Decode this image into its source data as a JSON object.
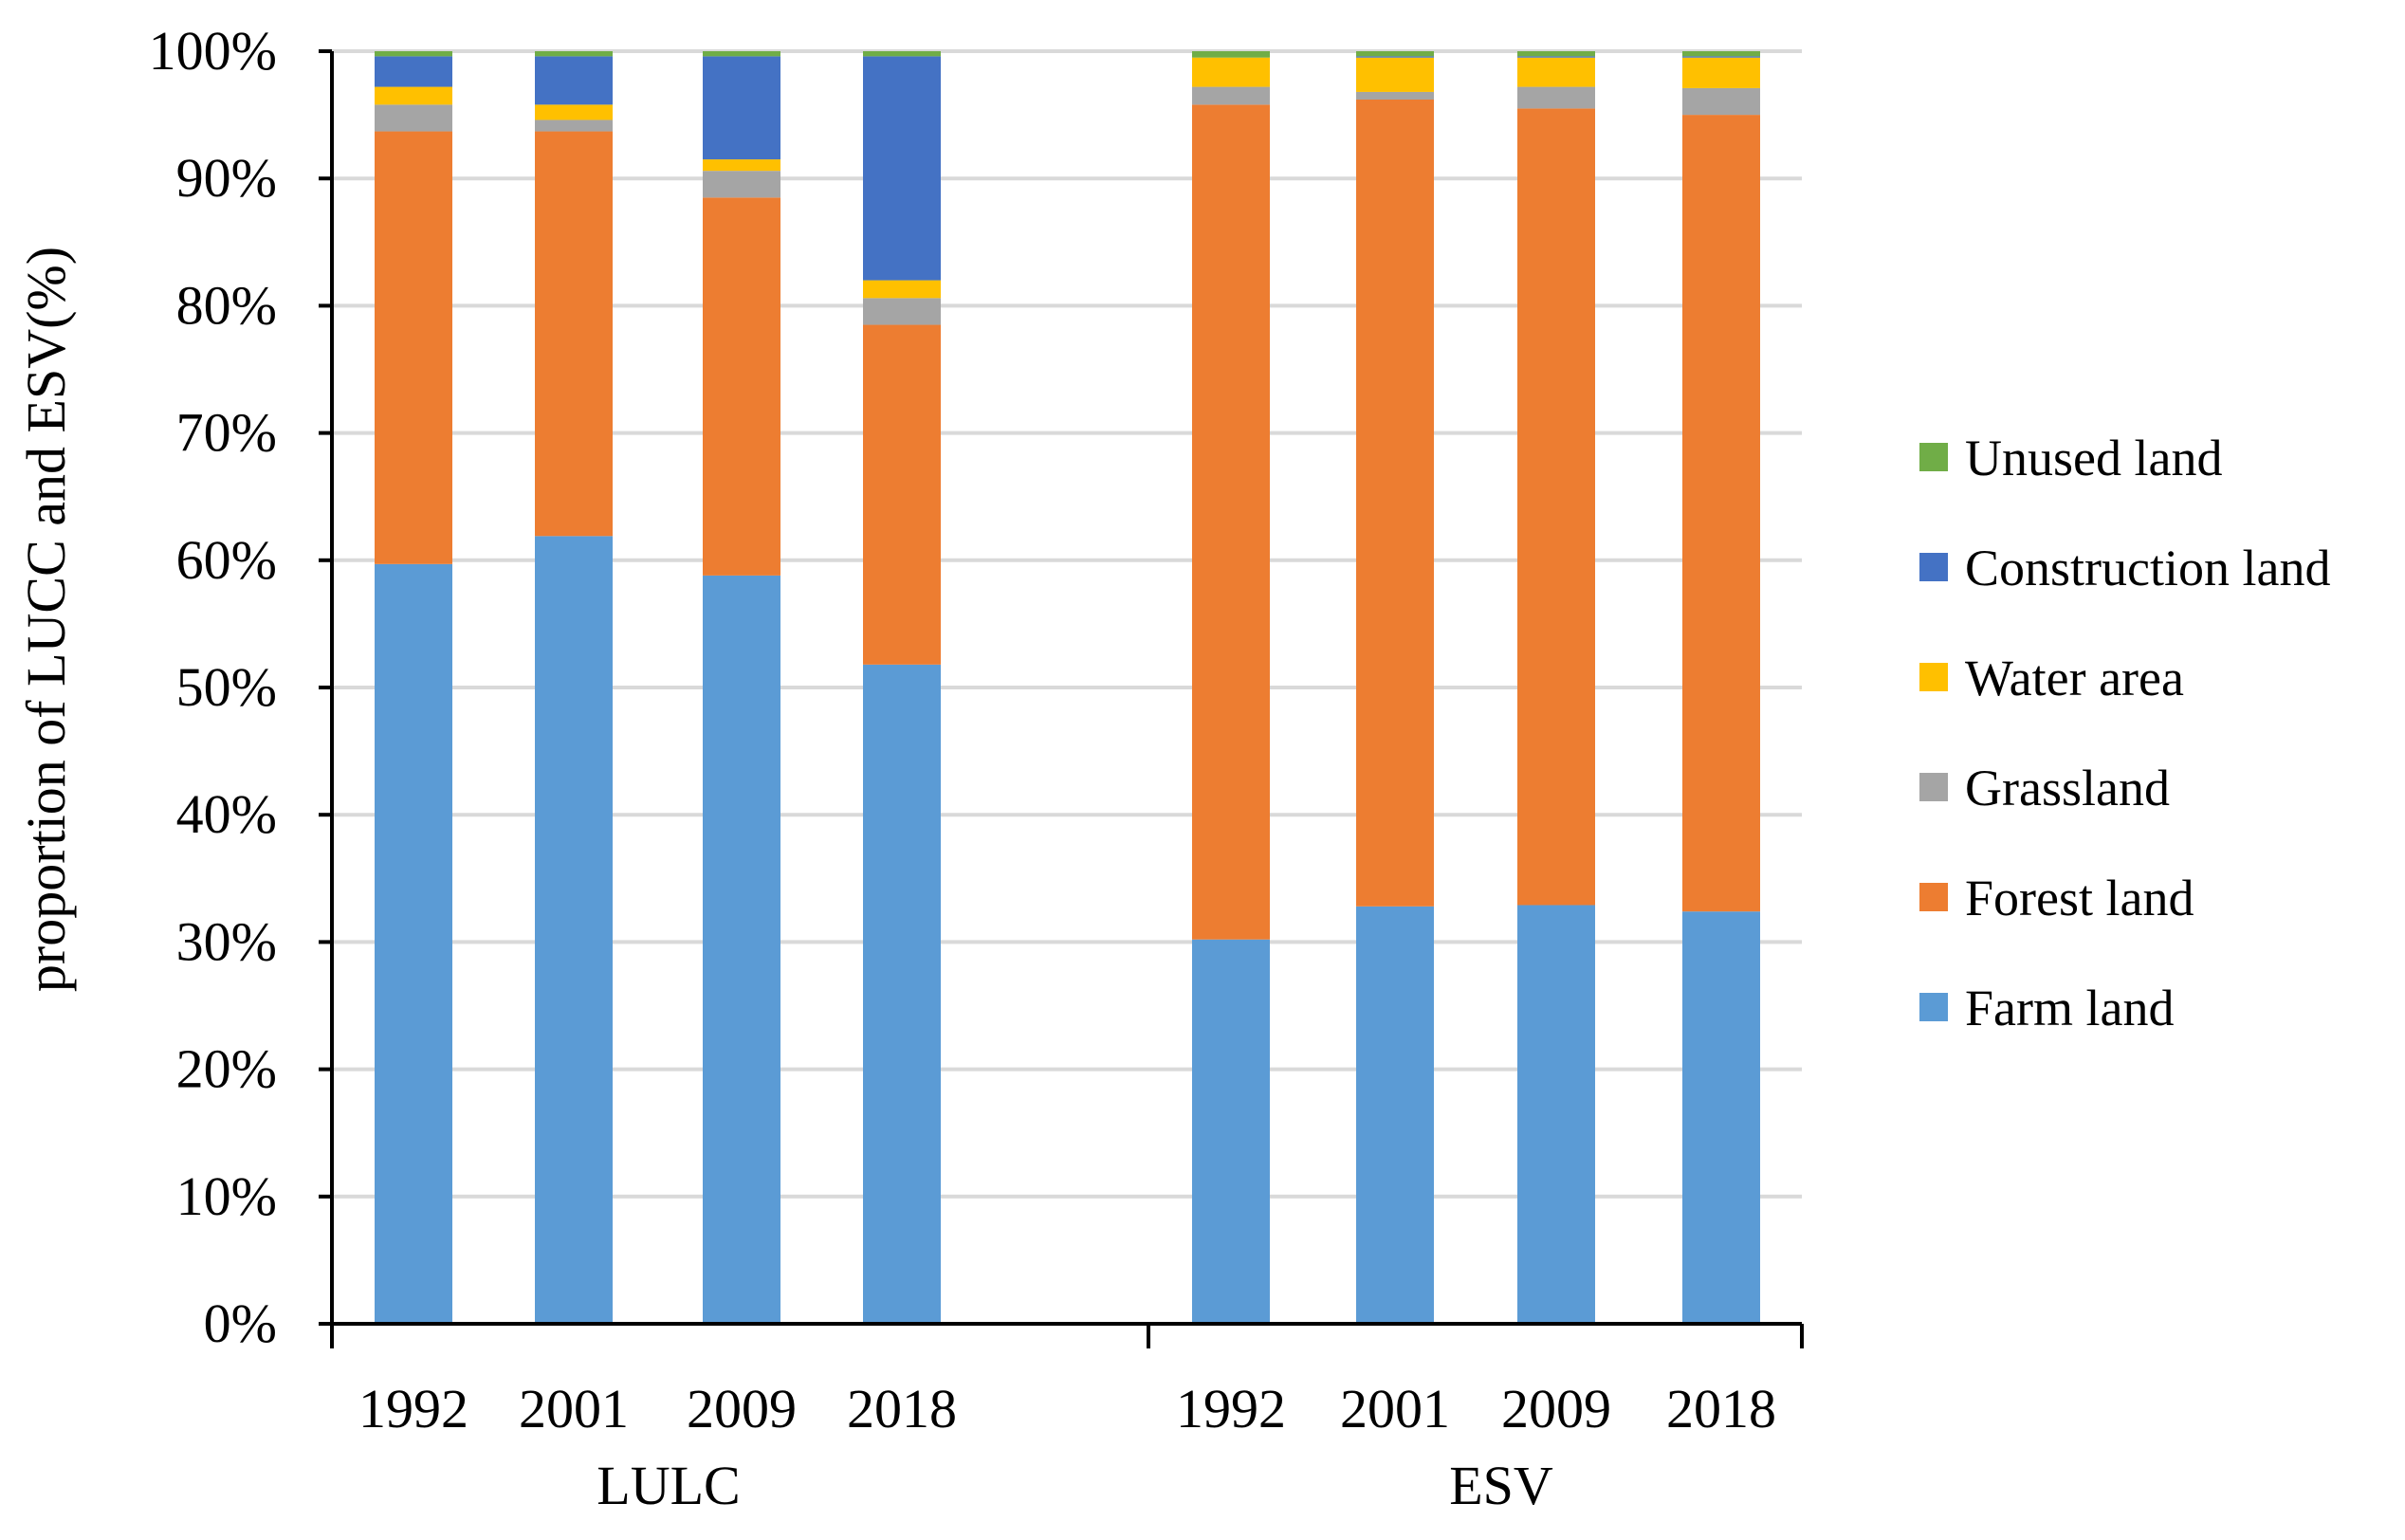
{
  "chart_data": {
    "type": "bar",
    "stacked": true,
    "ylabel": "proportion of LUCC  and ESV(%)",
    "ylim": [
      0,
      100
    ],
    "yticks": [
      "0%",
      "10%",
      "20%",
      "30%",
      "40%",
      "50%",
      "60%",
      "70%",
      "80%",
      "90%",
      "100%"
    ],
    "grid": true,
    "legend_position": "right",
    "groups": [
      {
        "name": "LULC",
        "categories": [
          "1992",
          "2001",
          "2009",
          "2018"
        ]
      },
      {
        "name": "ESV",
        "categories": [
          "1992",
          "2001",
          "2009",
          "2018"
        ]
      }
    ],
    "series": [
      {
        "name": "Farm land",
        "color": "#5B9BD5",
        "values": [
          59.7,
          61.9,
          58.8,
          51.8,
          30.2,
          32.8,
          32.9,
          32.4
        ]
      },
      {
        "name": "Forest land",
        "color": "#ED7D31",
        "values": [
          34.0,
          31.8,
          29.7,
          26.7,
          65.6,
          63.4,
          62.6,
          62.6
        ]
      },
      {
        "name": "Grassland",
        "color": "#A5A5A5",
        "values": [
          2.1,
          0.9,
          2.1,
          2.1,
          1.4,
          0.6,
          1.7,
          2.1
        ]
      },
      {
        "name": "Water area",
        "color": "#FFC000",
        "values": [
          1.4,
          1.2,
          0.9,
          1.4,
          2.3,
          2.7,
          2.3,
          2.4
        ]
      },
      {
        "name": "Construction land",
        "color": "#4472C4",
        "values": [
          2.4,
          3.8,
          8.1,
          17.6,
          0.0,
          0.1,
          0.1,
          0.1
        ]
      },
      {
        "name": "Unused land",
        "color": "#70AD47",
        "values": [
          0.4,
          0.4,
          0.4,
          0.4,
          0.5,
          0.4,
          0.4,
          0.4
        ]
      }
    ],
    "legend_order": [
      "Unused land",
      "Construction land",
      "Water area",
      "Grassland",
      "Forest land",
      "Farm land"
    ]
  }
}
